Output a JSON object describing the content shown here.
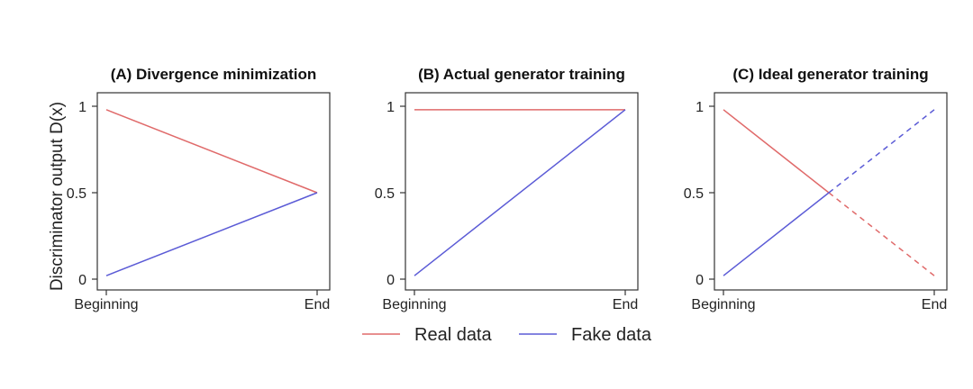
{
  "ylabel": "Discriminator output D(x)",
  "legend": [
    {
      "label": "Real data",
      "color": "#e06a6a"
    },
    {
      "label": "Fake data",
      "color": "#5b5bd6"
    }
  ],
  "chart_data": [
    {
      "type": "line",
      "title": "(A) Divergence minimization",
      "x_tick_labels": [
        "Beginning",
        "End"
      ],
      "y_ticks": [
        0,
        0.5,
        1
      ],
      "y_tick_labels": [
        "0",
        "0.5",
        "1"
      ],
      "ylim": [
        0,
        1
      ],
      "series": [
        {
          "name": "Real data",
          "segments": [
            {
              "x": [
                0,
                1
              ],
              "y": [
                0.98,
                0.5
              ],
              "style": "solid"
            }
          ]
        },
        {
          "name": "Fake data",
          "segments": [
            {
              "x": [
                0,
                1
              ],
              "y": [
                0.02,
                0.5
              ],
              "style": "solid"
            }
          ]
        }
      ]
    },
    {
      "type": "line",
      "title": "(B) Actual generator training",
      "x_tick_labels": [
        "Beginning",
        "End"
      ],
      "y_ticks": [
        0,
        0.5,
        1
      ],
      "y_tick_labels": [
        "0",
        "0.5",
        "1"
      ],
      "ylim": [
        0,
        1
      ],
      "series": [
        {
          "name": "Real data",
          "segments": [
            {
              "x": [
                0,
                1
              ],
              "y": [
                0.98,
                0.98
              ],
              "style": "solid"
            }
          ]
        },
        {
          "name": "Fake data",
          "segments": [
            {
              "x": [
                0,
                1
              ],
              "y": [
                0.02,
                0.98
              ],
              "style": "solid"
            }
          ]
        }
      ]
    },
    {
      "type": "line",
      "title": "(C) Ideal generator training",
      "x_tick_labels": [
        "Beginning",
        "End"
      ],
      "y_ticks": [
        0,
        0.5,
        1
      ],
      "y_tick_labels": [
        "0",
        "0.5",
        "1"
      ],
      "ylim": [
        0,
        1
      ],
      "series": [
        {
          "name": "Real data",
          "segments": [
            {
              "x": [
                0,
                0.5
              ],
              "y": [
                0.98,
                0.5
              ],
              "style": "solid"
            },
            {
              "x": [
                0.5,
                1
              ],
              "y": [
                0.5,
                0.02
              ],
              "style": "dashed"
            }
          ]
        },
        {
          "name": "Fake data",
          "segments": [
            {
              "x": [
                0,
                0.5
              ],
              "y": [
                0.02,
                0.5
              ],
              "style": "solid"
            },
            {
              "x": [
                0.5,
                1
              ],
              "y": [
                0.5,
                0.98
              ],
              "style": "dashed"
            }
          ]
        }
      ]
    }
  ]
}
